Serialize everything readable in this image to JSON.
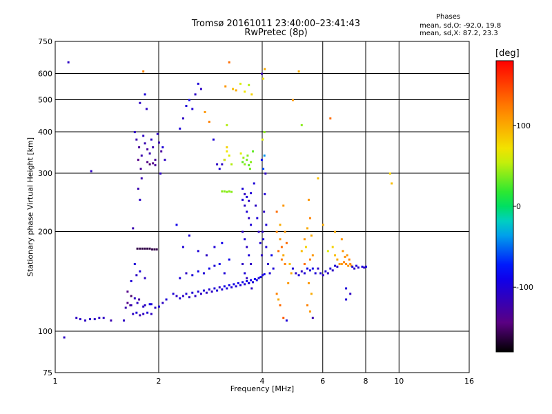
{
  "title": {
    "line1": "Tromsø 20161011 23:40:00–23:41:43",
    "line2": "RwPretec (8p)"
  },
  "stats": {
    "heading": "Phases",
    "line1": "mean, sd,O: -92.0, 19.8",
    "line2": "mean, sd,X:  87.2, 23.3"
  },
  "colorbar": {
    "unit": "[deg]",
    "range": [
      -180,
      180
    ],
    "ticks": [
      "100",
      "0",
      "-100"
    ],
    "tick_values": [
      100,
      0,
      -100
    ]
  },
  "chart_data": {
    "type": "scatter",
    "xlabel": "Frequency [MHz]",
    "ylabel": "Stationary phase Virtual Height [km]",
    "xscale": "log",
    "yscale": "log",
    "xlim": [
      1,
      16
    ],
    "ylim": [
      75,
      750
    ],
    "xticks": [
      {
        "value": 1,
        "label": "1"
      },
      {
        "value": 2,
        "label": "2"
      },
      {
        "value": 4,
        "label": "4"
      },
      {
        "value": 6,
        "label": "6"
      },
      {
        "value": 8,
        "label": "8"
      },
      {
        "value": 10,
        "label": "10"
      },
      {
        "value": 16,
        "label": "16"
      }
    ],
    "yticks": [
      {
        "value": 75,
        "label": "75"
      },
      {
        "value": 100,
        "label": "100"
      },
      {
        "value": 200,
        "label": "200"
      },
      {
        "value": 300,
        "label": "300"
      },
      {
        "value": 400,
        "label": "400"
      },
      {
        "value": 500,
        "label": "500"
      },
      {
        "value": 600,
        "label": "600"
      },
      {
        "value": 750,
        "label": "750"
      }
    ],
    "grid": true,
    "points": [
      [
        1.06,
        96,
        -110
      ],
      [
        1.09,
        650,
        -110
      ],
      [
        1.15,
        110,
        -110
      ],
      [
        1.18,
        109,
        -110
      ],
      [
        1.22,
        108,
        -110
      ],
      [
        1.26,
        109,
        -110
      ],
      [
        1.3,
        109,
        -110
      ],
      [
        1.34,
        110,
        -110
      ],
      [
        1.38,
        110,
        -110
      ],
      [
        1.27,
        305,
        -110
      ],
      [
        1.45,
        108,
        -120
      ],
      [
        1.58,
        108,
        -110
      ],
      [
        1.6,
        118,
        -120
      ],
      [
        1.62,
        132,
        -140
      ],
      [
        1.65,
        120,
        -130
      ],
      [
        1.68,
        113,
        -110
      ],
      [
        1.72,
        114,
        -100
      ],
      [
        1.76,
        112,
        -120
      ],
      [
        1.8,
        113,
        -110
      ],
      [
        1.85,
        114,
        -100
      ],
      [
        1.9,
        113,
        -110
      ],
      [
        1.95,
        118,
        -110
      ],
      [
        2.0,
        119,
        -100
      ],
      [
        2.05,
        122,
        -110
      ],
      [
        2.1,
        125,
        -100
      ],
      [
        1.66,
        128,
        -150
      ],
      [
        1.7,
        126,
        -110
      ],
      [
        1.75,
        125,
        -130
      ],
      [
        1.82,
        120,
        -110
      ],
      [
        1.9,
        121,
        -100
      ],
      [
        1.62,
        122,
        -140
      ],
      [
        1.66,
        120,
        -120
      ],
      [
        1.73,
        122,
        -110
      ],
      [
        1.8,
        119,
        -110
      ],
      [
        1.88,
        121,
        -90
      ],
      [
        1.66,
        142,
        -100
      ],
      [
        1.72,
        148,
        -110
      ],
      [
        1.76,
        152,
        -100
      ],
      [
        1.82,
        145,
        -110
      ],
      [
        1.7,
        160,
        -100
      ],
      [
        1.73,
        178,
        -160
      ],
      [
        1.76,
        178,
        -160
      ],
      [
        1.79,
        178,
        -160
      ],
      [
        1.82,
        178,
        -160
      ],
      [
        1.85,
        178,
        -160
      ],
      [
        1.88,
        178,
        -160
      ],
      [
        1.91,
        177,
        -160
      ],
      [
        1.94,
        177,
        -160
      ],
      [
        1.97,
        177,
        -160
      ],
      [
        1.7,
        400,
        -110
      ],
      [
        1.72,
        380,
        -120
      ],
      [
        1.75,
        360,
        -130
      ],
      [
        1.78,
        340,
        -120
      ],
      [
        1.8,
        390,
        -110
      ],
      [
        1.82,
        370,
        -120
      ],
      [
        1.85,
        355,
        -130
      ],
      [
        1.88,
        345,
        -120
      ],
      [
        1.9,
        380,
        -110
      ],
      [
        1.92,
        360,
        -120
      ],
      [
        1.95,
        330,
        -130
      ],
      [
        1.98,
        395,
        -110
      ],
      [
        2.0,
        372,
        -120
      ],
      [
        2.03,
        350,
        -130
      ],
      [
        1.85,
        325,
        -140
      ],
      [
        1.88,
        320,
        -150
      ],
      [
        1.92,
        322,
        -140
      ],
      [
        1.95,
        318,
        -130
      ],
      [
        1.74,
        330,
        -140
      ],
      [
        1.77,
        310,
        -130
      ],
      [
        1.74,
        270,
        -120
      ],
      [
        1.76,
        250,
        -110
      ],
      [
        1.78,
        290,
        -120
      ],
      [
        1.76,
        490,
        -110
      ],
      [
        1.82,
        520,
        -100
      ],
      [
        1.84,
        470,
        -110
      ],
      [
        2.05,
        360,
        -100
      ],
      [
        2.08,
        330,
        -110
      ],
      [
        2.02,
        300,
        -110
      ],
      [
        1.8,
        610,
        120
      ],
      [
        1.68,
        205,
        -120
      ],
      [
        2.3,
        410,
        -100
      ],
      [
        2.35,
        440,
        -110
      ],
      [
        2.4,
        480,
        -100
      ],
      [
        2.45,
        500,
        -90
      ],
      [
        2.5,
        470,
        -100
      ],
      [
        2.55,
        520,
        -110
      ],
      [
        2.6,
        560,
        -100
      ],
      [
        2.65,
        540,
        -110
      ],
      [
        2.72,
        460,
        110
      ],
      [
        2.8,
        430,
        120
      ],
      [
        2.88,
        380,
        -100
      ],
      [
        2.95,
        320,
        -110
      ],
      [
        3.0,
        310,
        -100
      ],
      [
        3.05,
        320,
        -110
      ],
      [
        3.1,
        330,
        -100
      ],
      [
        3.12,
        550,
        110
      ],
      [
        3.15,
        420,
        50
      ],
      [
        3.2,
        650,
        130
      ],
      [
        3.28,
        540,
        90
      ],
      [
        2.2,
        130,
        -100
      ],
      [
        2.25,
        128,
        -110
      ],
      [
        2.3,
        126,
        -100
      ],
      [
        2.35,
        128,
        -110
      ],
      [
        2.4,
        130,
        -100
      ],
      [
        2.45,
        127,
        -110
      ],
      [
        2.5,
        131,
        -100
      ],
      [
        2.55,
        128,
        -110
      ],
      [
        2.6,
        132,
        -100
      ],
      [
        2.65,
        130,
        -110
      ],
      [
        2.7,
        133,
        -100
      ],
      [
        2.75,
        131,
        -110
      ],
      [
        2.8,
        134,
        -100
      ],
      [
        2.85,
        132,
        -110
      ],
      [
        2.9,
        135,
        -100
      ],
      [
        2.95,
        133,
        -100
      ],
      [
        3.0,
        136,
        -110
      ],
      [
        3.05,
        134,
        -100
      ],
      [
        3.1,
        137,
        -90
      ],
      [
        3.15,
        135,
        -100
      ],
      [
        3.2,
        138,
        -90
      ],
      [
        3.25,
        136,
        -100
      ],
      [
        3.3,
        139,
        -90
      ],
      [
        3.35,
        137,
        -100
      ],
      [
        3.4,
        140,
        -90
      ],
      [
        3.45,
        138,
        -100
      ],
      [
        3.5,
        141,
        -90
      ],
      [
        3.55,
        139,
        -100
      ],
      [
        3.6,
        142,
        -90
      ],
      [
        3.65,
        140,
        -100
      ],
      [
        3.7,
        143,
        -90
      ],
      [
        3.75,
        141,
        -100
      ],
      [
        3.8,
        144,
        -90
      ],
      [
        3.85,
        143,
        -90
      ],
      [
        3.9,
        145,
        -100
      ],
      [
        3.95,
        146,
        -90
      ],
      [
        4.0,
        148,
        -100
      ],
      [
        4.05,
        149,
        -90
      ],
      [
        2.3,
        145,
        -100
      ],
      [
        2.4,
        150,
        -110
      ],
      [
        2.5,
        148,
        -100
      ],
      [
        2.6,
        152,
        -90
      ],
      [
        2.7,
        150,
        -100
      ],
      [
        2.8,
        155,
        -90
      ],
      [
        2.9,
        158,
        -100
      ],
      [
        3.0,
        160,
        -90
      ],
      [
        3.1,
        150,
        -100
      ],
      [
        3.2,
        165,
        -90
      ],
      [
        2.6,
        175,
        -100
      ],
      [
        2.75,
        170,
        -110
      ],
      [
        2.9,
        180,
        -100
      ],
      [
        3.05,
        185,
        -90
      ],
      [
        2.45,
        195,
        -100
      ],
      [
        2.25,
        210,
        -90
      ],
      [
        2.35,
        180,
        -100
      ],
      [
        3.05,
        265,
        40
      ],
      [
        3.1,
        265,
        40
      ],
      [
        3.15,
        264,
        40
      ],
      [
        3.2,
        265,
        40
      ],
      [
        3.25,
        264,
        40
      ],
      [
        3.1,
        330,
        60
      ],
      [
        3.15,
        350,
        70
      ],
      [
        3.2,
        340,
        60
      ],
      [
        3.15,
        360,
        80
      ],
      [
        3.25,
        320,
        50
      ],
      [
        3.35,
        535,
        100
      ],
      [
        3.45,
        560,
        60
      ],
      [
        3.55,
        530,
        70
      ],
      [
        3.65,
        555,
        50
      ],
      [
        3.72,
        520,
        80
      ],
      [
        3.5,
        325,
        30
      ],
      [
        3.55,
        320,
        40
      ],
      [
        3.6,
        330,
        35
      ],
      [
        3.65,
        318,
        30
      ],
      [
        3.7,
        325,
        40
      ],
      [
        3.52,
        335,
        45
      ],
      [
        3.62,
        340,
        40
      ],
      [
        3.68,
        310,
        35
      ],
      [
        3.46,
        345,
        60
      ],
      [
        3.75,
        350,
        30
      ],
      [
        3.5,
        250,
        -100
      ],
      [
        3.55,
        240,
        -110
      ],
      [
        3.6,
        230,
        -100
      ],
      [
        3.65,
        220,
        -110
      ],
      [
        3.7,
        210,
        -100
      ],
      [
        3.5,
        200,
        -110
      ],
      [
        3.55,
        190,
        -100
      ],
      [
        3.6,
        180,
        -110
      ],
      [
        3.65,
        170,
        -100
      ],
      [
        3.7,
        160,
        -110
      ],
      [
        3.5,
        270,
        -100
      ],
      [
        3.55,
        260,
        -110
      ],
      [
        3.6,
        255,
        -100
      ],
      [
        3.65,
        248,
        -110
      ],
      [
        3.7,
        262,
        -100
      ],
      [
        3.5,
        160,
        -110
      ],
      [
        3.55,
        150,
        -100
      ],
      [
        3.6,
        145,
        -110
      ],
      [
        3.65,
        140,
        -100
      ],
      [
        3.72,
        135,
        -110
      ],
      [
        3.78,
        280,
        -100
      ],
      [
        3.82,
        240,
        -110
      ],
      [
        3.86,
        220,
        -100
      ],
      [
        3.9,
        200,
        -110
      ],
      [
        3.94,
        185,
        -100
      ],
      [
        3.98,
        170,
        -110
      ],
      [
        4.02,
        190,
        -100
      ],
      [
        4.04,
        230,
        -110
      ],
      [
        4.06,
        260,
        -100
      ],
      [
        4.08,
        300,
        -110
      ],
      [
        4.02,
        310,
        -60
      ],
      [
        4.05,
        340,
        -40
      ],
      [
        3.98,
        330,
        -80
      ],
      [
        4.0,
        200,
        -110
      ],
      [
        4.1,
        210,
        -100
      ],
      [
        4.0,
        380,
        60
      ],
      [
        4.05,
        400,
        40
      ],
      [
        3.98,
        600,
        -120
      ],
      [
        4.02,
        580,
        70
      ],
      [
        4.06,
        620,
        100
      ],
      [
        4.1,
        180,
        -100
      ],
      [
        4.15,
        160,
        -110
      ],
      [
        4.2,
        150,
        -100
      ],
      [
        4.25,
        170,
        -90
      ],
      [
        4.3,
        155,
        -100
      ],
      [
        4.4,
        200,
        120
      ],
      [
        4.5,
        190,
        110
      ],
      [
        4.55,
        180,
        130
      ],
      [
        4.6,
        170,
        100
      ],
      [
        4.65,
        160,
        120
      ],
      [
        4.45,
        175,
        130
      ],
      [
        4.55,
        165,
        120
      ],
      [
        4.65,
        200,
        110
      ],
      [
        4.7,
        185,
        130
      ],
      [
        4.5,
        210,
        100
      ],
      [
        4.6,
        240,
        110
      ],
      [
        4.4,
        230,
        130
      ],
      [
        4.8,
        160,
        90
      ],
      [
        4.85,
        150,
        100
      ],
      [
        4.75,
        140,
        110
      ],
      [
        4.4,
        130,
        120
      ],
      [
        4.5,
        120,
        130
      ],
      [
        4.6,
        110,
        140
      ],
      [
        4.7,
        108,
        -100
      ],
      [
        4.45,
        125,
        100
      ],
      [
        4.9,
        155,
        -100
      ],
      [
        5.0,
        150,
        -110
      ],
      [
        5.1,
        148,
        -100
      ],
      [
        5.2,
        152,
        -110
      ],
      [
        5.3,
        150,
        -100
      ],
      [
        5.4,
        155,
        -90
      ],
      [
        5.5,
        153,
        -100
      ],
      [
        5.6,
        155,
        -90
      ],
      [
        5.2,
        175,
        90
      ],
      [
        5.3,
        190,
        110
      ],
      [
        5.4,
        205,
        100
      ],
      [
        5.5,
        220,
        120
      ],
      [
        5.45,
        250,
        110
      ],
      [
        5.35,
        180,
        80
      ],
      [
        5.55,
        195,
        100
      ],
      [
        5.6,
        170,
        110
      ],
      [
        5.5,
        165,
        120
      ],
      [
        5.3,
        160,
        130
      ],
      [
        5.45,
        140,
        110
      ],
      [
        5.55,
        130,
        100
      ],
      [
        5.4,
        120,
        120
      ],
      [
        5.5,
        115,
        110
      ],
      [
        5.6,
        110,
        -120
      ],
      [
        5.7,
        150,
        -100
      ],
      [
        5.8,
        155,
        -110
      ],
      [
        5.9,
        150,
        -100
      ],
      [
        6.0,
        148,
        -110
      ],
      [
        6.1,
        152,
        -100
      ],
      [
        6.2,
        150,
        -110
      ],
      [
        6.3,
        155,
        -100
      ],
      [
        6.4,
        153,
        -110
      ],
      [
        6.5,
        158,
        -100
      ],
      [
        6.6,
        157,
        -110
      ],
      [
        6.2,
        175,
        60
      ],
      [
        6.4,
        180,
        80
      ],
      [
        6.5,
        170,
        90
      ],
      [
        6.6,
        165,
        100
      ],
      [
        6.7,
        160,
        110
      ],
      [
        6.8,
        160,
        110
      ],
      [
        6.9,
        162,
        120
      ],
      [
        7.0,
        160,
        115
      ],
      [
        7.1,
        158,
        110
      ],
      [
        7.2,
        160,
        115
      ],
      [
        6.85,
        175,
        110
      ],
      [
        6.95,
        168,
        115
      ],
      [
        7.05,
        170,
        110
      ],
      [
        7.15,
        165,
        120
      ],
      [
        7.25,
        158,
        110
      ],
      [
        7.3,
        157,
        -100
      ],
      [
        7.4,
        155,
        -110
      ],
      [
        7.5,
        158,
        -100
      ],
      [
        7.6,
        156,
        -110
      ],
      [
        7.8,
        157,
        -100
      ],
      [
        7.9,
        156,
        -110
      ],
      [
        8.0,
        157,
        -100
      ],
      [
        7.0,
        135,
        -100
      ],
      [
        7.2,
        130,
        -110
      ],
      [
        7.0,
        125,
        -100
      ],
      [
        6.5,
        200,
        100
      ],
      [
        6.8,
        190,
        110
      ],
      [
        6.0,
        210,
        100
      ],
      [
        5.8,
        290,
        90
      ],
      [
        6.3,
        440,
        130
      ],
      [
        9.5,
        280,
        90
      ],
      [
        9.4,
        300,
        80
      ],
      [
        5.2,
        420,
        40
      ],
      [
        5.1,
        610,
        100
      ],
      [
        4.9,
        500,
        110
      ]
    ]
  }
}
